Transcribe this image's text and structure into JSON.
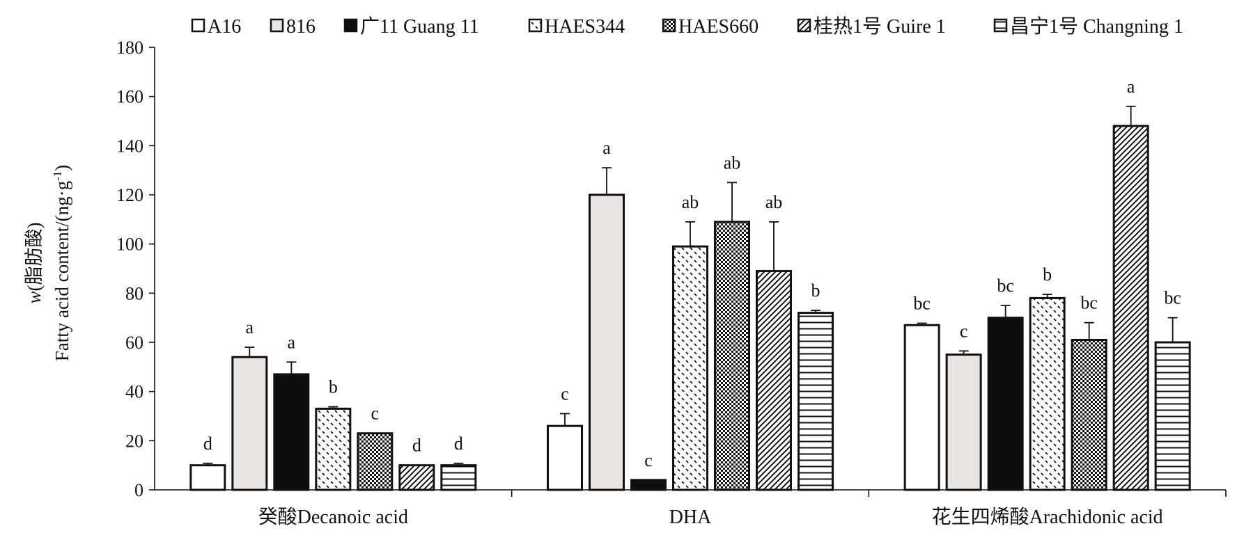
{
  "chart_data": {
    "type": "bar",
    "ylabel_line1_prefix": "w",
    "ylabel_line1_text": "(脂肪酸)",
    "ylabel_line2_base": "Fatty acid content/(ng·g",
    "ylabel_line2_sup": "-1",
    "ylabel_line2_close": ")",
    "ylim": [
      0,
      180
    ],
    "yticks": [
      "0",
      "20",
      "40",
      "60",
      "80",
      "100",
      "120",
      "140",
      "160",
      "180"
    ],
    "categories": [
      "癸酸Decanoic acid",
      "DHA",
      "花生四烯酸Arachidonic acid"
    ],
    "legend_position": "top",
    "series": [
      {
        "name": "A16",
        "pattern": "white",
        "values": [
          10,
          26,
          67
        ],
        "errors": [
          0.8,
          5,
          0.8
        ],
        "letters": [
          "d",
          "c",
          "bc"
        ]
      },
      {
        "name": "816",
        "pattern": "lightgray",
        "values": [
          54,
          120,
          55
        ],
        "errors": [
          4,
          11,
          1.5
        ],
        "letters": [
          "a",
          "a",
          "c"
        ]
      },
      {
        "name": "广11 Guang 11",
        "pattern": "black",
        "values": [
          47,
          4,
          70
        ],
        "errors": [
          5,
          0,
          5
        ],
        "letters": [
          "a",
          "c",
          "bc"
        ]
      },
      {
        "name": "HAES344",
        "pattern": "dashes",
        "values": [
          33,
          99,
          78
        ],
        "errors": [
          0.8,
          10,
          1.5
        ],
        "letters": [
          "b",
          "ab",
          "b"
        ]
      },
      {
        "name": "HAES660",
        "pattern": "checker",
        "values": [
          23,
          109,
          61
        ],
        "errors": [
          0,
          16,
          7
        ],
        "letters": [
          "c",
          "ab",
          "bc"
        ]
      },
      {
        "name": "桂热1号 Guire 1",
        "pattern": "diagonal",
        "values": [
          10,
          89,
          148
        ],
        "errors": [
          0,
          20,
          8
        ],
        "letters": [
          "d",
          "ab",
          "a"
        ]
      },
      {
        "name": "昌宁1号 Changning 1",
        "pattern": "hlines",
        "values": [
          10,
          72,
          60
        ],
        "errors": [
          0.8,
          1,
          10
        ],
        "letters": [
          "d",
          "b",
          "bc"
        ]
      }
    ]
  }
}
